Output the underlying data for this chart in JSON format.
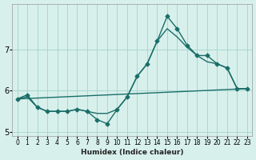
{
  "xlabel": "Humidex (Indice chaleur)",
  "bg_color": "#d8f0ec",
  "grid_color": "#a8d8d0",
  "line_color": "#1a6e68",
  "line1_x": [
    0,
    1,
    2,
    3,
    4,
    5,
    6,
    7,
    8,
    9,
    10,
    11,
    12,
    13,
    14,
    15,
    16,
    17,
    18,
    19,
    20,
    21,
    22,
    23
  ],
  "line1_y": [
    5.8,
    5.9,
    5.6,
    5.5,
    5.5,
    5.5,
    5.55,
    5.5,
    5.3,
    5.2,
    5.55,
    5.85,
    6.35,
    6.65,
    7.2,
    7.8,
    7.5,
    7.1,
    6.85,
    6.85,
    6.65,
    6.55,
    6.05,
    6.05
  ],
  "line2_x": [
    0,
    1,
    2,
    3,
    4,
    5,
    6,
    7,
    8,
    9,
    10,
    11,
    12,
    13,
    14,
    15,
    16,
    17,
    18,
    19,
    20,
    21,
    22,
    23
  ],
  "line2_y": [
    5.8,
    5.85,
    5.6,
    5.5,
    5.5,
    5.5,
    5.55,
    5.5,
    5.45,
    5.45,
    5.55,
    5.85,
    6.35,
    6.65,
    7.2,
    7.5,
    7.3,
    7.05,
    6.85,
    6.7,
    6.65,
    6.55,
    6.05,
    6.05
  ],
  "line3_x": [
    0,
    23
  ],
  "line3_y": [
    5.8,
    6.05
  ],
  "ylim": [
    4.9,
    8.1
  ],
  "xlim": [
    -0.5,
    23.5
  ],
  "yticks": [
    5,
    6,
    7
  ],
  "xticks": [
    0,
    1,
    2,
    3,
    4,
    5,
    6,
    7,
    8,
    9,
    10,
    11,
    12,
    13,
    14,
    15,
    16,
    17,
    18,
    19,
    20,
    21,
    22,
    23
  ],
  "marker_size": 2.5,
  "linewidth": 1.0
}
